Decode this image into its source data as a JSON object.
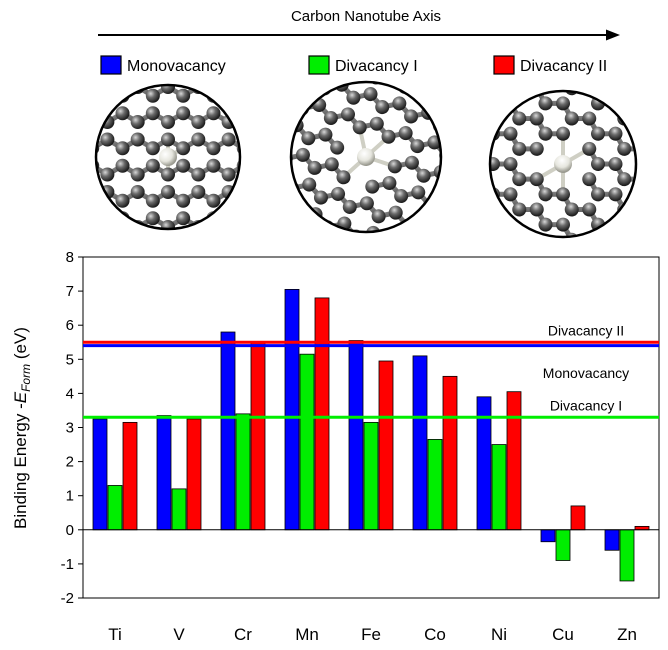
{
  "header": {
    "axis_title": "Carbon Nanotube Axis"
  },
  "legend": [
    {
      "name": "Monovacancy",
      "color": "#0000ff"
    },
    {
      "name": "Divacancy I",
      "color": "#00ee00"
    },
    {
      "name": "Divacancy II",
      "color": "#ff0000"
    }
  ],
  "structures": [
    {
      "icon": "monovacancy-structure-icon"
    },
    {
      "icon": "divacancy-i-structure-icon"
    },
    {
      "icon": "divacancy-ii-structure-icon"
    }
  ],
  "chart_data": {
    "type": "bar",
    "title": "",
    "xlabel": "",
    "ylabel_main": "Binding Energy -",
    "ylabel_symbol": "E",
    "ylabel_sub": "Form",
    "ylabel_unit": " (eV)",
    "categories": [
      "Ti",
      "V",
      "Cr",
      "Mn",
      "Fe",
      "Co",
      "Ni",
      "Cu",
      "Zn"
    ],
    "ylim": [
      -2,
      8
    ],
    "yticks": [
      -2,
      -1,
      0,
      1,
      2,
      3,
      4,
      5,
      6,
      7,
      8
    ],
    "series": [
      {
        "name": "Monovacancy",
        "color": "#0000ff",
        "values": [
          3.25,
          3.35,
          5.8,
          7.05,
          5.55,
          5.1,
          3.9,
          -0.35,
          -0.6
        ]
      },
      {
        "name": "Divacancy I",
        "color": "#00ee00",
        "values": [
          1.3,
          1.2,
          3.4,
          5.15,
          3.15,
          2.65,
          2.5,
          -0.9,
          -1.5
        ]
      },
      {
        "name": "Divacancy II",
        "color": "#ff0000",
        "values": [
          3.15,
          3.25,
          5.5,
          6.8,
          4.95,
          4.5,
          4.05,
          0.7,
          0.1
        ]
      }
    ],
    "reference_lines": [
      {
        "name": "Divacancy II",
        "value": 5.5,
        "color": "#ff0000"
      },
      {
        "name": "Monovacancy",
        "value": 5.4,
        "color": "#0000ff"
      },
      {
        "name": "Divacancy I",
        "value": 3.3,
        "color": "#00ee00"
      }
    ],
    "grid": false,
    "legend_position": "top"
  }
}
